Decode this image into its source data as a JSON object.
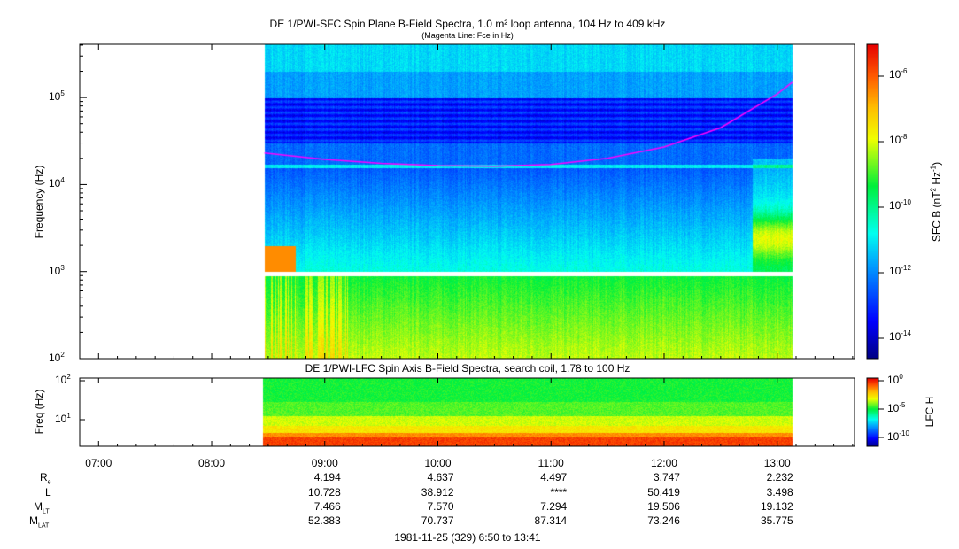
{
  "chart_data": [
    {
      "type": "heatmap",
      "title": "DE 1/PWI-SFC  Spin Plane B-Field Spectra, 1.0 m² loop antenna, 104 Hz to 409 kHz",
      "subtitle": "(Magenta Line: Fce in Hz)",
      "ylabel": "Frequency (Hz)",
      "yscale": "log",
      "ylim": [
        100,
        409000
      ],
      "yticks": [
        "10^2",
        "10^3",
        "10^4",
        "10^5"
      ],
      "data_time_range": [
        "08:28",
        "13:08"
      ],
      "data_gap_hz": [
        900,
        1000
      ],
      "colorbar": {
        "label": "SFC B (nT² Hz⁻¹)",
        "scale": "log",
        "range": [
          3e-15,
          1e-05
        ],
        "ticks": [
          "10^-6",
          "10^-8",
          "10^-10",
          "10^-12",
          "10^-14"
        ]
      },
      "fce_line": {
        "color": "#ff00ff",
        "time": [
          "08:28",
          "09:00",
          "09:30",
          "10:00",
          "10:30",
          "11:00",
          "11:30",
          "12:00",
          "12:30",
          "13:00",
          "13:08"
        ],
        "hz": [
          23000,
          19500,
          17500,
          16500,
          16200,
          17000,
          20000,
          27000,
          45000,
          110000,
          150000
        ]
      }
    },
    {
      "type": "heatmap",
      "title": "DE 1/PWI-LFC  Spin Axis B-Field Spectra, search coil, 1.78 to 100 Hz",
      "ylabel": "Freq (Hz)",
      "yscale": "log",
      "ylim": [
        1.78,
        100
      ],
      "yticks": [
        "10^2",
        "10^1"
      ],
      "data_time_range": [
        "08:27",
        "13:08"
      ],
      "colorbar": {
        "label": "LFC H",
        "scale": "log",
        "range": [
          1e-12,
          1
        ],
        "ticks": [
          "10^0",
          "10^-5",
          "10^-10"
        ]
      }
    }
  ],
  "xaxis": {
    "range": [
      "06:50",
      "13:41"
    ],
    "ticks": [
      "07:00",
      "08:00",
      "09:00",
      "10:00",
      "11:00",
      "12:00",
      "13:00"
    ]
  },
  "ephemeris": {
    "labels": {
      "re": "R",
      "re_sub": "e",
      "l": "L",
      "mlt": "M",
      "mlt_sub": "LT",
      "mlat": "M",
      "mlat_sub": "LAT"
    },
    "columns": [
      "09:00",
      "10:00",
      "11:00",
      "12:00",
      "13:00"
    ],
    "re": [
      "4.194",
      "4.637",
      "4.497",
      "3.747",
      "2.232"
    ],
    "l": [
      "10.728",
      "38.912",
      "****",
      "50.419",
      "3.498"
    ],
    "mlt": [
      "7.466",
      "7.570",
      "7.294",
      "19.506",
      "19.132"
    ],
    "mlat": [
      "52.383",
      "70.737",
      "87.314",
      "73.246",
      "35.775"
    ]
  },
  "footer": "1981-11-25 (329) 6:50 to 13:41"
}
